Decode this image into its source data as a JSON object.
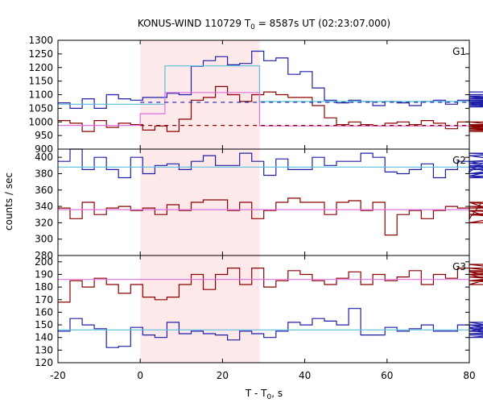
{
  "chart_data": {
    "type": "line",
    "title": "KONUS-WIND 110729 T",
    "title_sub": "0",
    "title_rest": " = 8587s UT (02:23:07.000)",
    "xlabel": "T - T",
    "xlabel_sub": "0",
    "xlabel_rest": ", s",
    "ylabel": "counts / sec",
    "xlim": [
      -20,
      80
    ],
    "xticks": [
      "-20",
      "0",
      "20",
      "40",
      "60",
      "80"
    ],
    "highlight": {
      "x0": 0,
      "x1": 29,
      "color": "#fde8ea"
    },
    "panels": [
      {
        "name": "G1",
        "ylim": [
          900,
          1300
        ],
        "yticks": [
          "900",
          "950",
          "1000",
          "1050",
          "1100",
          "1150",
          "1200",
          "1250",
          "1300"
        ],
        "series": [
          {
            "color": "#1f1fa8",
            "step": 2.944,
            "values": [
              1070,
              1050,
              1085,
              1050,
              1100,
              1085,
              1080,
              1090,
              1090,
              1105,
              1100,
              1205,
              1225,
              1240,
              1210,
              1215,
              1260,
              1225,
              1235,
              1175,
              1185,
              1125,
              1080,
              1070,
              1080,
              1075,
              1060,
              1075,
              1070,
              1060,
              1075,
              1080,
              1065,
              1080,
              1075,
              1070,
              1055,
              1060,
              1085,
              1095,
              1070,
              1090,
              1065,
              1080,
              1085,
              1080,
              1070,
              1075,
              1100,
              1110
            ]
          },
          {
            "color": "#8b0000",
            "step": 2.944,
            "values": [
              1005,
              995,
              965,
              1005,
              980,
              995,
              990,
              970,
              985,
              965,
              1010,
              1080,
              1090,
              1130,
              1100,
              1075,
              1100,
              1110,
              1100,
              1090,
              1090,
              1060,
              1015,
              990,
              1000,
              990,
              985,
              995,
              1000,
              990,
              1005,
              995,
              975,
              1000,
              990,
              985,
              975,
              990,
              985,
              1000,
              970,
              985,
              990,
              985,
              980,
              975,
              985,
              970,
              965,
              975
            ]
          },
          {
            "color": "#5bc0de",
            "step_points": [
              [
                -20,
                1065
              ],
              [
                6,
                1065
              ],
              [
                6,
                1206
              ],
              [
                29,
                1206
              ],
              [
                29,
                1075
              ],
              [
                80,
                1075
              ]
            ]
          },
          {
            "color": "#e070e0",
            "step_points": [
              [
                -20,
                987
              ],
              [
                0,
                987
              ],
              [
                0,
                1030
              ],
              [
                6,
                1030
              ],
              [
                6,
                1108
              ],
              [
                29,
                1108
              ],
              [
                29,
                985
              ],
              [
                80,
                985
              ]
            ]
          }
        ],
        "dashed": [
          {
            "color": "#1f1fa8",
            "x0": 0,
            "x1": 80,
            "value": 1072
          },
          {
            "color": "#8b0000",
            "x0": 0,
            "x1": 80,
            "value": 987
          }
        ]
      },
      {
        "name": "G2",
        "ylim": [
          280,
          410
        ],
        "yticks": [
          "280",
          "300",
          "320",
          "340",
          "360",
          "380",
          "400"
        ],
        "series": [
          {
            "color": "#1f1fa8",
            "step": 2.944,
            "values": [
              395,
              410,
              385,
              400,
              385,
              375,
              400,
              380,
              390,
              392,
              385,
              395,
              402,
              390,
              390,
              405,
              395,
              378,
              398,
              385,
              385,
              400,
              390,
              395,
              395,
              405,
              400,
              382,
              380,
              385,
              392,
              375,
              385,
              395,
              382,
              393,
              388,
              377,
              390,
              380,
              385,
              395,
              375,
              390,
              380,
              402,
              375,
              395,
              405,
              390
            ]
          },
          {
            "color": "#8b0000",
            "step": 2.944,
            "values": [
              338,
              325,
              345,
              330,
              338,
              340,
              335,
              338,
              330,
              342,
              335,
              345,
              348,
              348,
              335,
              345,
              325,
              335,
              345,
              350,
              345,
              345,
              330,
              345,
              347,
              335,
              345,
              305,
              330,
              335,
              325,
              335,
              340,
              338,
              325,
              345,
              335,
              320,
              330,
              335,
              330,
              335,
              330,
              320,
              345,
              330,
              340,
              335,
              338,
              345
            ]
          },
          {
            "color": "#5bc0de",
            "step_points": [
              [
                -20,
                388
              ],
              [
                80,
                388
              ]
            ]
          },
          {
            "color": "#e070e0",
            "step_points": [
              [
                -20,
                336
              ],
              [
                80,
                336
              ]
            ]
          }
        ],
        "dashed": []
      },
      {
        "name": "G3",
        "ylim": [
          120,
          205
        ],
        "yticks": [
          "120",
          "130",
          "140",
          "150",
          "160",
          "170",
          "180",
          "190",
          "200"
        ],
        "series": [
          {
            "color": "#8b0000",
            "step": 2.944,
            "values": [
              168,
              185,
              180,
              187,
              182,
              175,
              182,
              172,
              170,
              172,
              182,
              190,
              178,
              190,
              195,
              182,
              195,
              180,
              185,
              193,
              190,
              185,
              182,
              187,
              192,
              182,
              190,
              185,
              188,
              193,
              182,
              190,
              187,
              195,
              192,
              190,
              185,
              188,
              185,
              182,
              198,
              190,
              195,
              185,
              190,
              185,
              190,
              193,
              192,
              188
            ]
          },
          {
            "color": "#1f1fa8",
            "step": 2.944,
            "values": [
              145,
              155,
              150,
              147,
              132,
              133,
              148,
              142,
              140,
              152,
              143,
              145,
              143,
              142,
              138,
              145,
              143,
              140,
              145,
              152,
              150,
              155,
              153,
              150,
              163,
              142,
              142,
              148,
              145,
              147,
              150,
              145,
              145,
              150,
              148,
              145,
              150,
              145,
              152,
              145,
              143,
              147,
              140,
              148,
              150,
              145,
              140,
              142,
              143,
              148
            ]
          },
          {
            "color": "#e070e0",
            "step_points": [
              [
                -20,
                186
              ],
              [
                80,
                186
              ]
            ]
          },
          {
            "color": "#5bc0de",
            "step_points": [
              [
                -20,
                146
              ],
              [
                80,
                146
              ]
            ]
          }
        ],
        "dashed": []
      }
    ]
  }
}
